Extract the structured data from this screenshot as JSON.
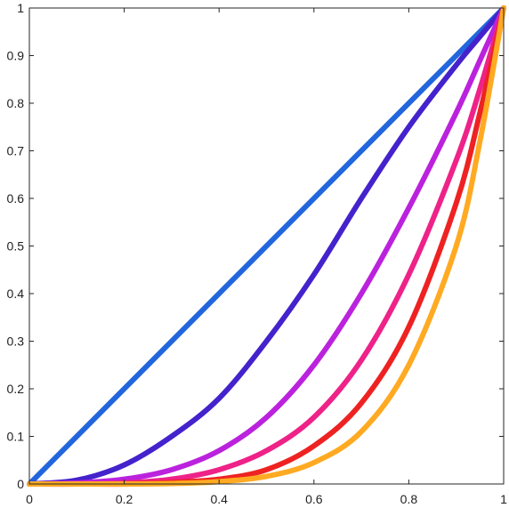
{
  "chart_data": {
    "type": "line",
    "title": "",
    "xlabel": "",
    "ylabel": "",
    "xlim": [
      0,
      1
    ],
    "ylim": [
      0,
      1
    ],
    "grid": false,
    "legend": "none",
    "x_ticks": [
      "0",
      "0.2",
      "0.4",
      "0.6",
      "0.8",
      "1"
    ],
    "y_ticks": [
      "0",
      "0.1",
      "0.2",
      "0.3",
      "0.4",
      "0.5",
      "0.6",
      "0.7",
      "0.8",
      "0.9",
      "1"
    ],
    "x": [
      0,
      0.1,
      0.2,
      0.3,
      0.4,
      0.5,
      0.6,
      0.7,
      0.8,
      0.9,
      0.95,
      1
    ],
    "series": [
      {
        "color": "#2266dd",
        "values": [
          0,
          0.1,
          0.2,
          0.3,
          0.4,
          0.5,
          0.6,
          0.7,
          0.8,
          0.9,
          0.95,
          1
        ]
      },
      {
        "color": "#4422cc",
        "values": [
          0,
          0.008,
          0.04,
          0.1,
          0.18,
          0.3,
          0.44,
          0.6,
          0.75,
          0.88,
          0.94,
          1
        ]
      },
      {
        "color": "#bb22dd",
        "values": [
          0,
          0.002,
          0.01,
          0.03,
          0.07,
          0.14,
          0.25,
          0.4,
          0.58,
          0.78,
          0.89,
          1
        ]
      },
      {
        "color": "#ee2288",
        "values": [
          0,
          0,
          0.002,
          0.01,
          0.03,
          0.07,
          0.14,
          0.26,
          0.44,
          0.68,
          0.83,
          1
        ]
      },
      {
        "color": "#ee2222",
        "values": [
          0,
          0,
          0,
          0.003,
          0.01,
          0.03,
          0.08,
          0.17,
          0.33,
          0.59,
          0.78,
          1
        ]
      },
      {
        "color": "#ffaa22",
        "values": [
          0,
          0,
          0,
          0.001,
          0.005,
          0.016,
          0.045,
          0.11,
          0.25,
          0.5,
          0.72,
          1
        ]
      }
    ]
  }
}
